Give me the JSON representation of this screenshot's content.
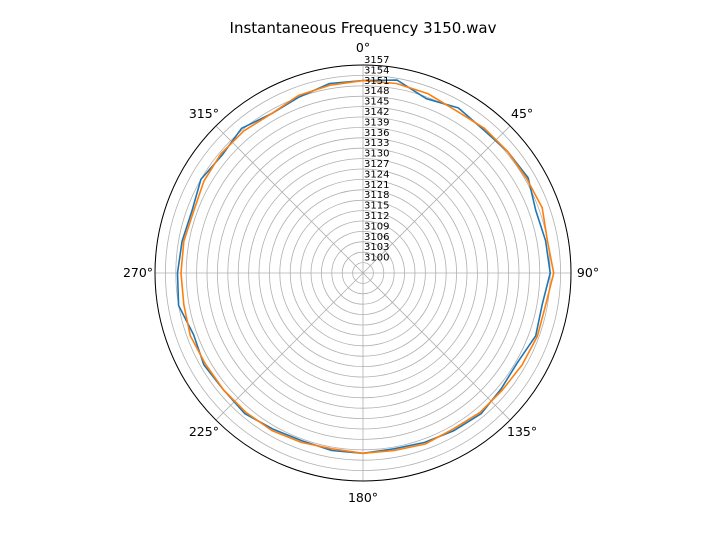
{
  "chart_data": {
    "type": "line",
    "projection": "polar",
    "title": "Instantaneous Frequency  3150.wav",
    "theta_zero_location": "top",
    "theta_direction": "clockwise",
    "theta_ticks": [
      "0°",
      "45°",
      "90°",
      "135°",
      "180°",
      "225°",
      "270°",
      "315°"
    ],
    "rlim": [
      3097,
      3157
    ],
    "r_ticks": [
      3100,
      3103,
      3106,
      3109,
      3112,
      3115,
      3118,
      3121,
      3124,
      3127,
      3130,
      3133,
      3136,
      3139,
      3142,
      3145,
      3148,
      3151,
      3154,
      3157
    ],
    "grid": true,
    "series": [
      {
        "color": "#1f77b4",
        "theta_deg": [
          0,
          10,
          20,
          30,
          40,
          50,
          60,
          70,
          80,
          90,
          100,
          110,
          120,
          130,
          140,
          150,
          160,
          170,
          180,
          190,
          200,
          210,
          220,
          230,
          240,
          250,
          260,
          270,
          280,
          290,
          300,
          310,
          320,
          330,
          340,
          350
        ],
        "r": [
          3152.5,
          3153.5,
          3150.5,
          3152,
          3151,
          3151.5,
          3152,
          3150,
          3150.5,
          3151,
          3149.5,
          3150,
          3148.5,
          3149,
          3150,
          3149.5,
          3149,
          3148.5,
          3149,
          3149,
          3148.5,
          3149,
          3150,
          3149.5,
          3150,
          3149,
          3151,
          3150.5,
          3150,
          3149.5,
          3151,
          3150,
          3151.5,
          3150,
          3151,
          3152.5
        ]
      },
      {
        "color": "#ff7f0e",
        "theta_deg": [
          0,
          10,
          20,
          30,
          40,
          50,
          60,
          70,
          80,
          90,
          100,
          110,
          120,
          130,
          140,
          150,
          160,
          170,
          180,
          190,
          200,
          210,
          220,
          230,
          240,
          250,
          260,
          270,
          280,
          290,
          300,
          310,
          320,
          330,
          340,
          350
        ],
        "r": [
          3152.5,
          3152.5,
          3152,
          3151,
          3151.5,
          3151.5,
          3151.5,
          3152,
          3151,
          3152,
          3150.5,
          3150.5,
          3150,
          3149.5,
          3149.5,
          3149,
          3149.5,
          3149,
          3149,
          3148.5,
          3149,
          3149.5,
          3149.5,
          3149.5,
          3149.5,
          3150,
          3149.5,
          3149.5,
          3149.5,
          3149,
          3150,
          3150.5,
          3150.5,
          3150,
          3151.5,
          3152
        ]
      }
    ]
  }
}
